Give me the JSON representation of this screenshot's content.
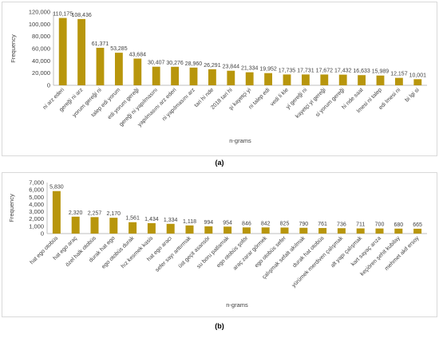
{
  "chart_data": [
    {
      "type": "bar",
      "xlabel": "n-grams",
      "ylabel": "Frequency",
      "ylim": [
        0,
        120000
      ],
      "yticks": [
        "0",
        "20,000",
        "40,000",
        "60,000",
        "80,000",
        "100,000",
        "120,000"
      ],
      "ytick_values": [
        0,
        20000,
        40000,
        60000,
        80000,
        100000,
        120000
      ],
      "categories": [
        "ni arz ederi",
        "gereği ni arz",
        "yorum gereği ni",
        "talep edi yorum",
        "edi yorum gereği",
        "gereği ni yapılmasını",
        "yapılmasını arz ederi",
        "ni yapılmasını arz",
        "tari hi nde",
        "2018 tari hi",
        "şi kayetçi yi",
        "ni talep edi",
        "vedi li kle",
        "yi gereği ni",
        "kayetçi yi gereği",
        "si yorum gereği",
        "hi nde saat",
        "lmesi ni talep",
        "edi lmesi ni",
        "bi lgi si"
      ],
      "values": [
        110175,
        108436,
        61371,
        53285,
        43684,
        30407,
        30276,
        28960,
        26291,
        23844,
        21334,
        19952,
        17735,
        17731,
        17672,
        17432,
        16633,
        15989,
        12157,
        10001
      ],
      "value_labels": [
        "110,175",
        "108,436",
        "61,371",
        "53,285",
        "43,684",
        "30,407",
        "30,276",
        "28,960",
        "26,291",
        "23,844",
        "21,334",
        "19,952",
        "17,735",
        "17,731",
        "17,672",
        "17,432",
        "16,633",
        "15,989",
        "12,157",
        "10,001"
      ],
      "color": "#b8960c",
      "grid": false,
      "legend": "none"
    },
    {
      "type": "bar",
      "xlabel": "n-grams",
      "ylabel": "Frequency",
      "ylim": [
        0,
        7000
      ],
      "yticks": [
        "0",
        "1,000",
        "2,000",
        "3,000",
        "4,000",
        "5,000",
        "6,000",
        "7,000"
      ],
      "ytick_values": [
        0,
        1000,
        2000,
        3000,
        4000,
        5000,
        6000,
        7000
      ],
      "categories": [
        "hat ego otobüs",
        "hat ego araç",
        "özel halk otobüs",
        "durak hat ego",
        "ego otobüs durak",
        "hız kesmek kasis",
        "hat ego aracı",
        "sefer sayı arttırmak",
        "üst geçit asansör",
        "su boru patlamak",
        "ego otobüs şoför",
        "araç zarar görmek",
        "ego otobüs sefer",
        "çalışmak sefalt akılmak",
        "durak hat otobüs",
        "yürümek merdiven çalışmak",
        "alt yapı çalışmak",
        "kart sayaç arıza",
        "keçiören şehit kubilay",
        "mehmet akif ersoy"
      ],
      "values": [
        5830,
        2320,
        2257,
        2170,
        1561,
        1434,
        1334,
        1118,
        994,
        954,
        846,
        842,
        825,
        790,
        761,
        736,
        711,
        700,
        680,
        665
      ],
      "value_labels": [
        "5,830",
        "2,320",
        "2,257",
        "2,170",
        "1,561",
        "1,434",
        "1,334",
        "1,118",
        "994",
        "954",
        "846",
        "842",
        "825",
        "790",
        "761",
        "736",
        "711",
        "700",
        "680",
        "665"
      ],
      "color": "#b8960c",
      "grid": false,
      "legend": "none"
    }
  ],
  "captions": {
    "a": "(a)",
    "b": "(b)"
  }
}
